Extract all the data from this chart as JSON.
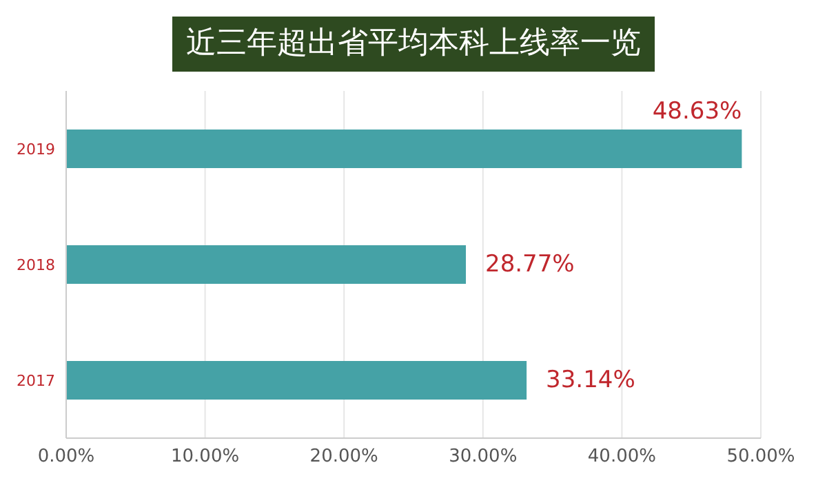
{
  "chart_data": {
    "type": "bar",
    "orientation": "horizontal",
    "title": "近三年超出省平均本科上线率一览",
    "categories": [
      "2019",
      "2018",
      "2017"
    ],
    "values": [
      48.63,
      28.77,
      33.14
    ],
    "value_labels": [
      "48.63%",
      "28.77%",
      "33.14%"
    ],
    "color": "#45a2a6",
    "xlim": [
      0,
      50
    ],
    "xticks": [
      {
        "value": 0,
        "label": "0.00%"
      },
      {
        "value": 10,
        "label": "10.00%"
      },
      {
        "value": 20,
        "label": "20.00%"
      },
      {
        "value": 30,
        "label": "30.00%"
      },
      {
        "value": 40,
        "label": "40.00%"
      },
      {
        "value": 50,
        "label": "50.00%"
      }
    ],
    "grid": "x"
  }
}
